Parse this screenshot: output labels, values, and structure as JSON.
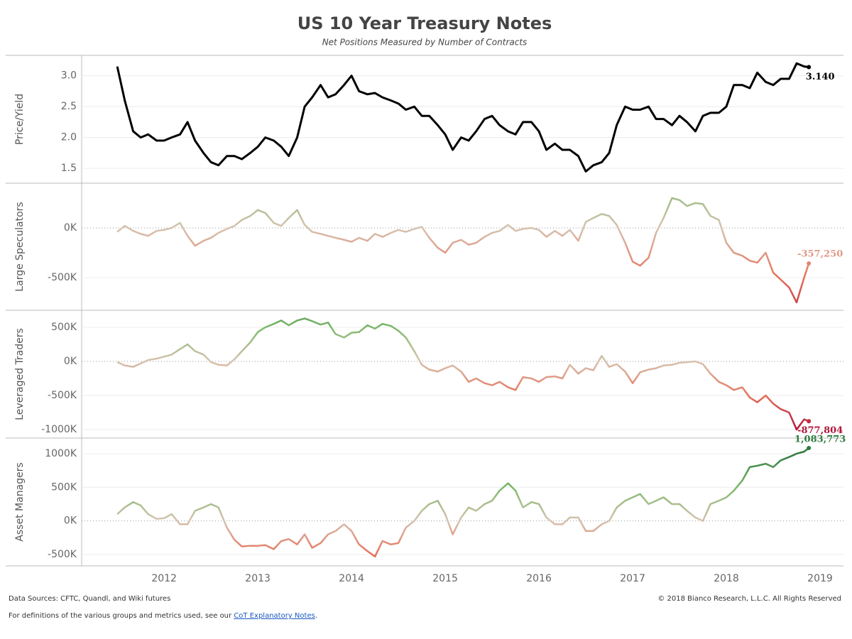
{
  "chart_data": {
    "type": "line",
    "title": "US 10 Year Treasury Notes",
    "subtitle": "Net Positions Measured by Number of Contracts",
    "x": [
      2011.5,
      2011.58,
      2011.67,
      2011.75,
      2011.83,
      2011.92,
      2012,
      2012.08,
      2012.17,
      2012.25,
      2012.33,
      2012.42,
      2012.5,
      2012.58,
      2012.67,
      2012.75,
      2012.83,
      2012.92,
      2013,
      2013.08,
      2013.17,
      2013.25,
      2013.33,
      2013.42,
      2013.5,
      2013.58,
      2013.67,
      2013.75,
      2013.83,
      2013.92,
      2014,
      2014.08,
      2014.17,
      2014.25,
      2014.33,
      2014.42,
      2014.5,
      2014.58,
      2014.67,
      2014.75,
      2014.83,
      2014.92,
      2015,
      2015.08,
      2015.17,
      2015.25,
      2015.33,
      2015.42,
      2015.5,
      2015.58,
      2015.67,
      2015.75,
      2015.83,
      2015.92,
      2016,
      2016.08,
      2016.17,
      2016.25,
      2016.33,
      2016.42,
      2016.5,
      2016.58,
      2016.67,
      2016.75,
      2016.83,
      2016.92,
      2017,
      2017.08,
      2017.17,
      2017.25,
      2017.33,
      2017.42,
      2017.5,
      2017.58,
      2017.67,
      2017.75,
      2017.83,
      2017.92,
      2018,
      2018.08,
      2018.17,
      2018.25,
      2018.33,
      2018.42,
      2018.5,
      2018.58,
      2018.67,
      2018.75,
      2018.83,
      2018.88
    ],
    "xlim": [
      2011.12,
      2019.25
    ],
    "xticks": [
      2012,
      2013,
      2014,
      2015,
      2016,
      2017,
      2018,
      2019
    ],
    "grid": true,
    "panels": [
      {
        "y_label": "Price/Yield",
        "color": "#000000",
        "ylim": [
          1.26,
          3.33
        ],
        "yticks": [
          1.5,
          {
            "value": 2,
            "label": "2.0"
          },
          2.5,
          {
            "value": 3,
            "label": "3.0"
          }
        ],
        "values": [
          3.15,
          2.6,
          2.1,
          2.0,
          2.05,
          1.95,
          1.95,
          2.0,
          2.05,
          2.25,
          1.95,
          1.75,
          1.6,
          1.55,
          1.7,
          1.7,
          1.65,
          1.75,
          1.85,
          2.0,
          1.95,
          1.85,
          1.7,
          2.0,
          2.5,
          2.65,
          2.85,
          2.65,
          2.7,
          2.85,
          3.0,
          2.75,
          2.7,
          2.72,
          2.65,
          2.6,
          2.55,
          2.45,
          2.5,
          2.35,
          2.35,
          2.2,
          2.05,
          1.8,
          2.0,
          1.95,
          2.1,
          2.3,
          2.35,
          2.2,
          2.1,
          2.05,
          2.25,
          2.25,
          2.1,
          1.8,
          1.9,
          1.8,
          1.8,
          1.7,
          1.45,
          1.55,
          1.6,
          1.75,
          2.2,
          2.5,
          2.45,
          2.45,
          2.5,
          2.3,
          2.3,
          2.2,
          2.35,
          2.25,
          2.1,
          2.35,
          2.4,
          2.4,
          2.5,
          2.85,
          2.85,
          2.8,
          3.05,
          2.9,
          2.85,
          2.95,
          2.95,
          3.2,
          3.15,
          3.14
        ],
        "value_labels": [
          null,
          null,
          null,
          null,
          null,
          null,
          null,
          null,
          null,
          null,
          null,
          null,
          null,
          null,
          null,
          null,
          null,
          null,
          null,
          null,
          null,
          null,
          null,
          null,
          null,
          null,
          null,
          null,
          null,
          null,
          null,
          null,
          null,
          null,
          null,
          null,
          null,
          null,
          null,
          null,
          null,
          null,
          null,
          null,
          null,
          null,
          null,
          null,
          null,
          null,
          null,
          null,
          null,
          null,
          null,
          null,
          null,
          null,
          null,
          null,
          null,
          null,
          null,
          null,
          null,
          null,
          null,
          null,
          null,
          null,
          null,
          null,
          null,
          null,
          null,
          null,
          null,
          null,
          null,
          null,
          null,
          null,
          null,
          null,
          null,
          null,
          null,
          null,
          null,
          "3.140"
        ]
      },
      {
        "y_label": "Large Speculators",
        "color_scale": {
          "domain": [
            -1000000,
            -500000,
            0,
            500000,
            1000000
          ],
          "colors": [
            "#b2163a",
            "#e8705a",
            "#d6c3b0",
            "#7cb96a",
            "#2f7a3f"
          ]
        },
        "ylim": [
          -829000,
          450000
        ],
        "yticks": [
          {
            "value": -500000,
            "label": "-500K"
          },
          {
            "value": 0,
            "label": "0K"
          }
        ],
        "values": [
          -40000,
          20000,
          -30000,
          -60000,
          -80000,
          -30000,
          -20000,
          0,
          50000,
          -80000,
          -180000,
          -130000,
          -100000,
          -50000,
          -10000,
          20000,
          80000,
          120000,
          180000,
          150000,
          50000,
          20000,
          100000,
          180000,
          30000,
          -40000,
          -60000,
          -80000,
          -100000,
          -120000,
          -140000,
          -100000,
          -130000,
          -60000,
          -90000,
          -50000,
          -20000,
          -40000,
          -10000,
          10000,
          -100000,
          -200000,
          -250000,
          -150000,
          -120000,
          -170000,
          -150000,
          -90000,
          -50000,
          -30000,
          30000,
          -30000,
          -10000,
          0,
          -20000,
          -90000,
          -30000,
          -80000,
          -20000,
          -130000,
          60000,
          100000,
          140000,
          120000,
          30000,
          -150000,
          -340000,
          -380000,
          -300000,
          -50000,
          100000,
          300000,
          280000,
          220000,
          250000,
          240000,
          120000,
          80000,
          -150000,
          -250000,
          -280000,
          -330000,
          -350000,
          -250000,
          -450000,
          -520000,
          -600000,
          -750000,
          -500000,
          -357250
        ],
        "value_labels": [
          null,
          null,
          null,
          null,
          null,
          null,
          null,
          null,
          null,
          null,
          null,
          null,
          null,
          null,
          null,
          null,
          null,
          null,
          null,
          null,
          null,
          null,
          null,
          null,
          null,
          null,
          null,
          null,
          null,
          null,
          null,
          null,
          null,
          null,
          null,
          null,
          null,
          null,
          null,
          null,
          null,
          null,
          null,
          null,
          null,
          null,
          null,
          null,
          null,
          null,
          null,
          null,
          null,
          null,
          null,
          null,
          null,
          null,
          null,
          null,
          null,
          null,
          null,
          null,
          null,
          null,
          null,
          null,
          null,
          null,
          null,
          null,
          null,
          null,
          null,
          null,
          null,
          null,
          null,
          null,
          null,
          null,
          null,
          null,
          null,
          null,
          null,
          null,
          null,
          "-357,250"
        ]
      },
      {
        "y_label": "Leveraged Traders",
        "color_scale": {
          "domain": [
            -1000000,
            -500000,
            0,
            500000,
            1000000
          ],
          "colors": [
            "#b2163a",
            "#e8705a",
            "#d6c3b0",
            "#7cb96a",
            "#2f7a3f"
          ]
        },
        "ylim": [
          -1125000,
          750000
        ],
        "yticks": [
          {
            "value": -1000000,
            "label": "-1000K"
          },
          {
            "value": -500000,
            "label": "-500K"
          },
          {
            "value": 0,
            "label": "0K"
          },
          {
            "value": 500000,
            "label": "500K"
          }
        ],
        "values": [
          -10000,
          -60000,
          -80000,
          -30000,
          20000,
          40000,
          70000,
          100000,
          180000,
          250000,
          150000,
          100000,
          -10000,
          -50000,
          -60000,
          30000,
          150000,
          280000,
          430000,
          500000,
          550000,
          600000,
          530000,
          600000,
          630000,
          590000,
          540000,
          570000,
          400000,
          350000,
          420000,
          430000,
          530000,
          480000,
          550000,
          520000,
          450000,
          350000,
          150000,
          -50000,
          -120000,
          -150000,
          -100000,
          -60000,
          -150000,
          -300000,
          -250000,
          -320000,
          -350000,
          -300000,
          -380000,
          -420000,
          -230000,
          -250000,
          -300000,
          -230000,
          -220000,
          -250000,
          -50000,
          -180000,
          -100000,
          -130000,
          80000,
          -80000,
          -40000,
          -150000,
          -320000,
          -160000,
          -120000,
          -100000,
          -60000,
          -50000,
          -20000,
          -10000,
          0,
          -40000,
          -180000,
          -300000,
          -350000,
          -420000,
          -380000,
          -530000,
          -600000,
          -500000,
          -620000,
          -700000,
          -750000,
          -1000000,
          -850000,
          -877804
        ],
        "value_labels": [
          null,
          null,
          null,
          null,
          null,
          null,
          null,
          null,
          null,
          null,
          null,
          null,
          null,
          null,
          null,
          null,
          null,
          null,
          null,
          null,
          null,
          null,
          null,
          null,
          null,
          null,
          null,
          null,
          null,
          null,
          null,
          null,
          null,
          null,
          null,
          null,
          null,
          null,
          null,
          null,
          null,
          null,
          null,
          null,
          null,
          null,
          null,
          null,
          null,
          null,
          null,
          null,
          null,
          null,
          null,
          null,
          null,
          null,
          null,
          null,
          null,
          null,
          null,
          null,
          null,
          null,
          null,
          null,
          null,
          null,
          null,
          null,
          null,
          null,
          null,
          null,
          null,
          null,
          null,
          null,
          null,
          null,
          null,
          null,
          null,
          null,
          null,
          null,
          null,
          "-877,804"
        ]
      },
      {
        "y_label": "Asset Managers",
        "color_scale": {
          "domain": [
            -1000000,
            -500000,
            0,
            500000,
            1000000
          ],
          "colors": [
            "#b2163a",
            "#e8705a",
            "#d6c3b0",
            "#7cb96a",
            "#2f7a3f"
          ]
        },
        "ylim": [
          -669000,
          1232000
        ],
        "yticks": [
          {
            "value": -500000,
            "label": "-500K"
          },
          {
            "value": 0,
            "label": "0K"
          },
          {
            "value": 500000,
            "label": "500K"
          },
          {
            "value": 1000000,
            "label": "1000K"
          }
        ],
        "values": [
          100000,
          200000,
          280000,
          230000,
          100000,
          30000,
          40000,
          100000,
          -50000,
          -50000,
          150000,
          200000,
          250000,
          200000,
          -100000,
          -280000,
          -380000,
          -370000,
          -370000,
          -360000,
          -420000,
          -300000,
          -270000,
          -350000,
          -200000,
          -400000,
          -330000,
          -200000,
          -150000,
          -50000,
          -150000,
          -350000,
          -450000,
          -530000,
          -300000,
          -350000,
          -330000,
          -100000,
          0,
          150000,
          250000,
          300000,
          100000,
          -200000,
          50000,
          200000,
          150000,
          250000,
          300000,
          450000,
          560000,
          450000,
          200000,
          280000,
          250000,
          50000,
          -50000,
          -50000,
          50000,
          50000,
          -150000,
          -150000,
          -50000,
          0,
          200000,
          300000,
          350000,
          400000,
          250000,
          300000,
          350000,
          250000,
          250000,
          150000,
          50000,
          0,
          250000,
          300000,
          350000,
          450000,
          600000,
          800000,
          820000,
          850000,
          800000,
          900000,
          950000,
          1000000,
          1030000,
          1083773
        ],
        "value_labels": [
          null,
          null,
          null,
          null,
          null,
          null,
          null,
          null,
          null,
          null,
          null,
          null,
          null,
          null,
          null,
          null,
          null,
          null,
          null,
          null,
          null,
          null,
          null,
          null,
          null,
          null,
          null,
          null,
          null,
          null,
          null,
          null,
          null,
          null,
          null,
          null,
          null,
          null,
          null,
          null,
          null,
          null,
          null,
          null,
          null,
          null,
          null,
          null,
          null,
          null,
          null,
          null,
          null,
          null,
          null,
          null,
          null,
          null,
          null,
          null,
          null,
          null,
          null,
          null,
          null,
          null,
          null,
          null,
          null,
          null,
          null,
          null,
          null,
          null,
          null,
          null,
          null,
          null,
          null,
          null,
          null,
          null,
          null,
          null,
          null,
          null,
          null,
          null,
          null,
          "1,083,773"
        ]
      }
    ]
  },
  "footer": {
    "sources": "Data Sources: CFTC, Quandl, and Wiki futures",
    "copyright": "© 2018 Bianco Research, L.L.C. All Rights Reserved",
    "definitions": "For definitions of the various groups and metrics used, see our",
    "link": "CoT Explanatory Notes",
    "definitions_end": "."
  }
}
